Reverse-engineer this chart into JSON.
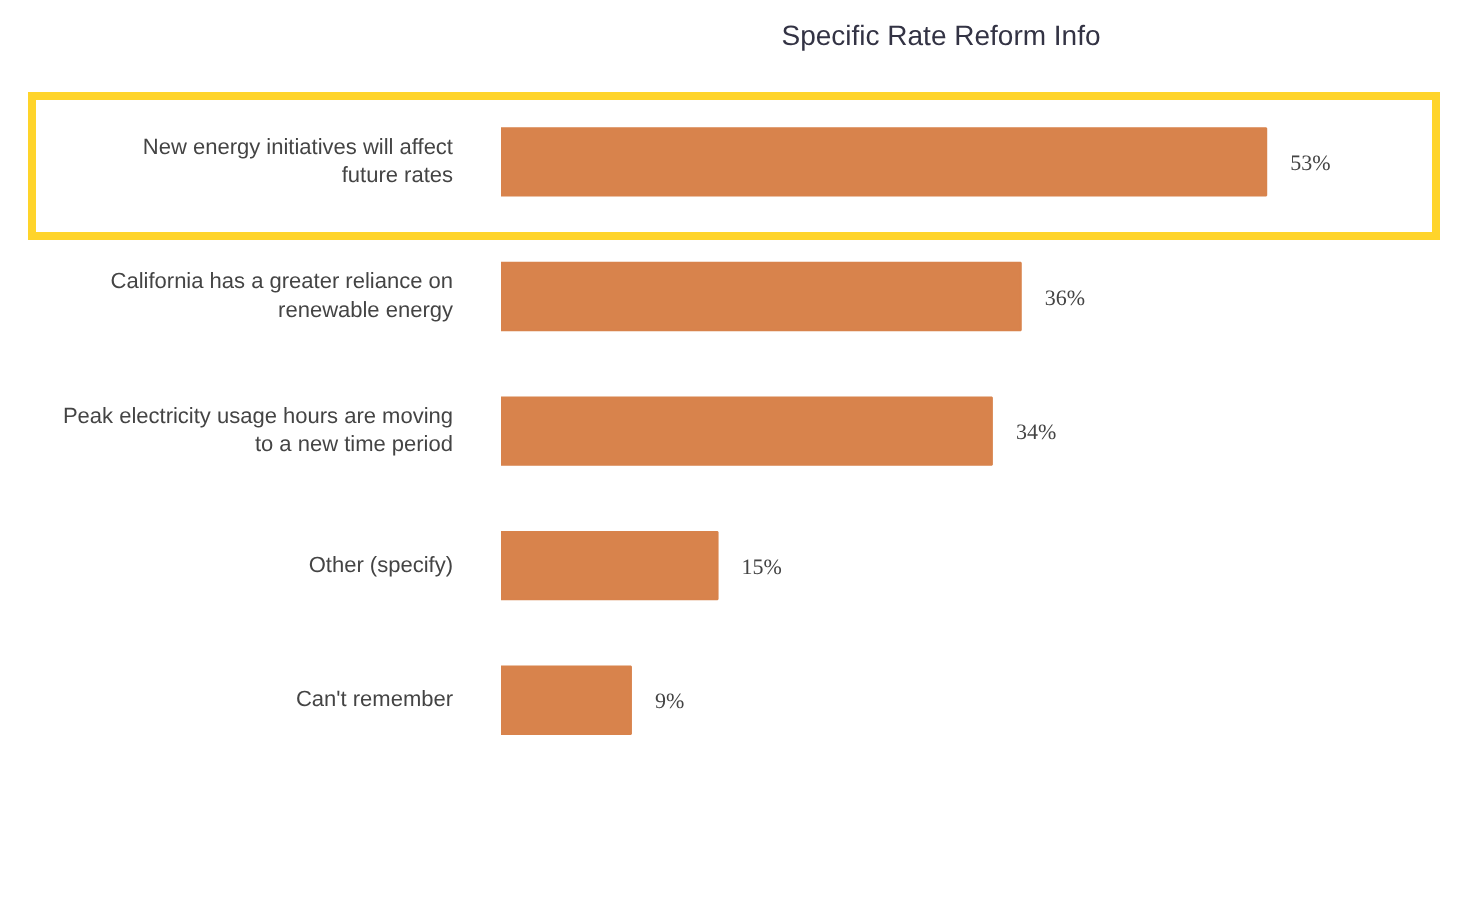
{
  "chart_data": {
    "type": "bar",
    "orientation": "horizontal",
    "title": "Specific Rate Reform Info",
    "categories": [
      "New energy initiatives will affect future rates",
      "California has a greater reliance on renewable energy",
      "Peak electricity usage hours are moving to a new time period",
      "Other (specify)",
      "Can't remember"
    ],
    "values": [
      53,
      36,
      34,
      15,
      9
    ],
    "value_labels": [
      "53%",
      "36%",
      "34%",
      "15%",
      "9%"
    ],
    "color": "#d8834c",
    "grid": false
  }
}
